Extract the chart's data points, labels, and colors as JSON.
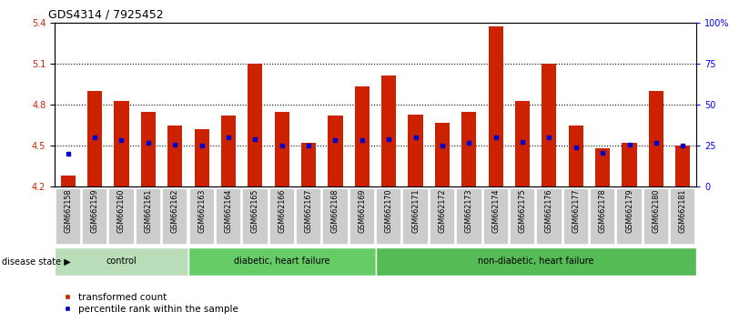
{
  "title": "GDS4314 / 7925452",
  "samples": [
    "GSM662158",
    "GSM662159",
    "GSM662160",
    "GSM662161",
    "GSM662162",
    "GSM662163",
    "GSM662164",
    "GSM662165",
    "GSM662166",
    "GSM662167",
    "GSM662168",
    "GSM662169",
    "GSM662170",
    "GSM662171",
    "GSM662172",
    "GSM662173",
    "GSM662174",
    "GSM662175",
    "GSM662176",
    "GSM662177",
    "GSM662178",
    "GSM662179",
    "GSM662180",
    "GSM662181"
  ],
  "bar_values": [
    4.28,
    4.9,
    4.83,
    4.75,
    4.65,
    4.62,
    4.72,
    5.1,
    4.75,
    4.52,
    4.72,
    4.93,
    5.01,
    4.73,
    4.67,
    4.75,
    5.37,
    4.83,
    5.1,
    4.65,
    4.48,
    4.52,
    4.9,
    4.5
  ],
  "blue_values": [
    4.44,
    4.56,
    4.54,
    4.52,
    4.51,
    4.5,
    4.56,
    4.55,
    4.5,
    4.5,
    4.54,
    4.54,
    4.55,
    4.56,
    4.5,
    4.52,
    4.56,
    4.53,
    4.56,
    4.49,
    4.45,
    4.51,
    4.52,
    4.5
  ],
  "bar_bottom": 4.2,
  "y_min": 4.2,
  "y_max": 5.4,
  "y_ticks_left": [
    4.2,
    4.5,
    4.8,
    5.1,
    5.4
  ],
  "right_y_ticks_pct": [
    0,
    25,
    50,
    75,
    100
  ],
  "right_y_labels": [
    "0",
    "25",
    "50",
    "75",
    "100%"
  ],
  "bar_color": "#cc2200",
  "blue_color": "#0000cc",
  "groups": [
    {
      "label": "control",
      "start": 0,
      "end": 5
    },
    {
      "label": "diabetic, heart failure",
      "start": 5,
      "end": 12
    },
    {
      "label": "non-diabetic, heart failure",
      "start": 12,
      "end": 24
    }
  ],
  "group_colors": [
    "#b8ddb8",
    "#66cc66",
    "#55bb55"
  ],
  "tick_bg_color": "#cccccc",
  "title_fontsize": 9,
  "tick_fontsize": 7,
  "bar_width": 0.55,
  "legend_labels": [
    "transformed count",
    "percentile rank within the sample"
  ]
}
